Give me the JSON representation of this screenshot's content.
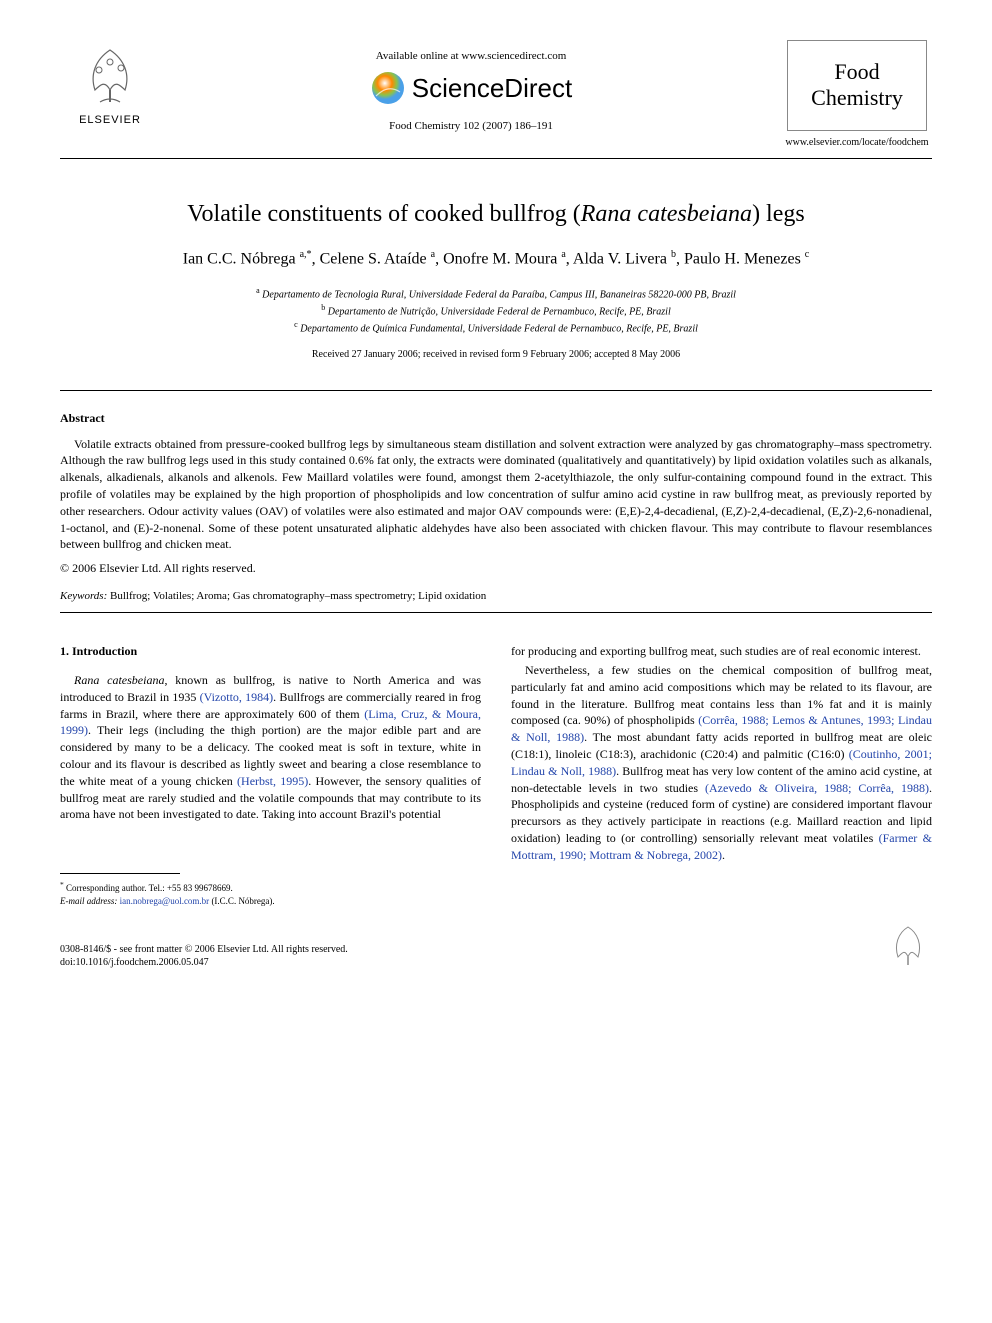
{
  "header": {
    "available_line": "Available online at www.sciencedirect.com",
    "sciencedirect": "ScienceDirect",
    "citation": "Food Chemistry 102 (2007) 186–191",
    "elsevier_label": "ELSEVIER",
    "journal_name_line1": "Food",
    "journal_name_line2": "Chemistry",
    "journal_url": "www.elsevier.com/locate/foodchem"
  },
  "article": {
    "title_pre": "Volatile constituents of cooked bullfrog (",
    "title_species": "Rana catesbeiana",
    "title_post": ") legs",
    "authors_html": "Ian C.C. Nóbrega <sup>a,*</sup>, Celene S. Ataíde <sup>a</sup>, Onofre M. Moura <sup>a</sup>, Alda V. Livera <sup>b</sup>, Paulo H. Menezes <sup>c</sup>",
    "affiliations": [
      {
        "label": "a",
        "text": "Departamento de Tecnologia Rural, Universidade Federal da Paraíba, Campus III, Bananeiras 58220-000 PB, Brazil"
      },
      {
        "label": "b",
        "text": "Departamento de Nutrição, Universidade Federal de Pernambuco, Recife, PE, Brazil"
      },
      {
        "label": "c",
        "text": "Departamento de Química Fundamental, Universidade Federal de Pernambuco, Recife, PE, Brazil"
      }
    ],
    "dates": "Received 27 January 2006; received in revised form 9 February 2006; accepted 8 May 2006"
  },
  "abstract": {
    "heading": "Abstract",
    "body": "Volatile extracts obtained from pressure-cooked bullfrog legs by simultaneous steam distillation and solvent extraction were analyzed by gas chromatography–mass spectrometry. Although the raw bullfrog legs used in this study contained 0.6% fat only, the extracts were dominated (qualitatively and quantitatively) by lipid oxidation volatiles such as alkanals, alkenals, alkadienals, alkanols and alkenols. Few Maillard volatiles were found, amongst them 2-acetylthiazole, the only sulfur-containing compound found in the extract. This profile of volatiles may be explained by the high proportion of phospholipids and low concentration of sulfur amino acid cystine in raw bullfrog meat, as previously reported by other researchers. Odour activity values (OAV) of volatiles were also estimated and major OAV compounds were: (E,E)-2,4-decadienal, (E,Z)-2,4-decadienal, (E,Z)-2,6-nonadienal, 1-octanol, and (E)-2-nonenal. Some of these potent unsaturated aliphatic aldehydes have also been associated with chicken flavour. This may contribute to flavour resemblances between bullfrog and chicken meat.",
    "copyright": "© 2006 Elsevier Ltd. All rights reserved."
  },
  "keywords": {
    "label": "Keywords:",
    "text": " Bullfrog; Volatiles; Aroma; Gas chromatography–mass spectrometry; Lipid oxidation"
  },
  "introduction": {
    "heading": "1. Introduction",
    "col1_html": "<span class='italic'>Rana catesbeiana</span>, known as bullfrog, is native to North America and was introduced to Brazil in 1935 <span class='ref-link'>(Vizotto, 1984)</span>. Bullfrogs are commercially reared in frog farms in Brazil, where there are approximately 600 of them <span class='ref-link'>(Lima, Cruz, & Moura, 1999)</span>. Their legs (including the thigh portion) are the major edible part and are considered by many to be a delicacy. The cooked meat is soft in texture, white in colour and its flavour is described as lightly sweet and bearing a close resemblance to the white meat of a young chicken <span class='ref-link'>(Herbst, 1995)</span>. However, the sensory qualities of bullfrog meat are rarely studied and the volatile compounds that may contribute to its aroma have not been investigated to date. Taking into account Brazil's potential",
    "col2_p1": "for producing and exporting bullfrog meat, such studies are of real economic interest.",
    "col2_p2_html": "Nevertheless, a few studies on the chemical composition of bullfrog meat, particularly fat and amino acid compositions which may be related to its flavour, are found in the literature. Bullfrog meat contains less than 1% fat and it is mainly composed (ca. 90%) of phospholipids <span class='ref-link'>(Corrêa, 1988; Lemos & Antunes, 1993; Lindau & Noll, 1988)</span>. The most abundant fatty acids reported in bullfrog meat are oleic (C18:1), linoleic (C18:3), arachidonic (C20:4) and palmitic (C16:0) <span class='ref-link'>(Coutinho, 2001; Lindau & Noll, 1988)</span>. Bullfrog meat has very low content of the amino acid cystine, at non-detectable levels in two studies <span class='ref-link'>(Azevedo & Oliveira, 1988; Corrêa, 1988)</span>. Phospholipids and cysteine (reduced form of cystine) are considered important flavour precursors as they actively participate in reactions (e.g. Maillard reaction and lipid oxidation) leading to (or controlling) sensorially relevant meat volatiles <span class='ref-link'>(Farmer & Mottram, 1990; Mottram & Nobrega, 2002)</span>."
  },
  "footnote": {
    "corresponding": "Corresponding author. Tel.: +55 83 99678669.",
    "email_label": "E-mail address:",
    "email": "ian.nobrega@uol.com.br",
    "email_who": "(I.C.C. Nóbrega)."
  },
  "footer": {
    "line1": "0308-8146/$ - see front matter © 2006 Elsevier Ltd. All rights reserved.",
    "line2": "doi:10.1016/j.foodchem.2006.05.047"
  },
  "colors": {
    "text": "#000000",
    "link": "#2244aa",
    "border": "#888888",
    "sd_orange": "#ff8800",
    "sd_green": "#8bc34a",
    "sd_blue": "#4aa0e8"
  }
}
